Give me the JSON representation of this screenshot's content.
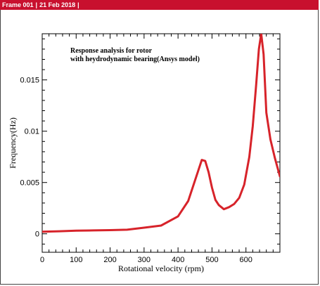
{
  "header": {
    "frame_label": "Frame 001",
    "date_label": "21 Feb 2018"
  },
  "colors": {
    "header_bg": "#c8102e",
    "line": "#d7232a"
  },
  "chart_data": {
    "type": "line",
    "title": "",
    "annotation_lines": [
      "Response analysis for rotor",
      "with heydrodynamic bearing(Ansys model)"
    ],
    "xlabel": "Rotational velocity (rpm)",
    "ylabel": "Frequency(Hz)",
    "xlim": [
      0,
      700
    ],
    "ylim": [
      -0.0018,
      0.0195
    ],
    "xticks": [
      0,
      100,
      200,
      300,
      400,
      500,
      600
    ],
    "xtick_labels": [
      "0",
      "100",
      "200",
      "300",
      "400",
      "500",
      "600"
    ],
    "yticks": [
      0,
      0.005,
      0.01,
      0.015
    ],
    "ytick_labels": [
      "0",
      "0.005",
      "0.01",
      "0.015"
    ],
    "grid": false,
    "series": [
      {
        "x": [
          0,
          50,
          100,
          150,
          200,
          250,
          300,
          350,
          400,
          430,
          460,
          470,
          480,
          490,
          500,
          510,
          520,
          535,
          550,
          565,
          580,
          595,
          610,
          620,
          630,
          638,
          645,
          652,
          660,
          672,
          685,
          700
        ],
        "y": [
          0.0002,
          0.00025,
          0.0003,
          0.00033,
          0.00036,
          0.0004,
          0.0006,
          0.0008,
          0.0017,
          0.0032,
          0.0062,
          0.0072,
          0.0071,
          0.006,
          0.0045,
          0.0033,
          0.0028,
          0.0024,
          0.0026,
          0.0029,
          0.0035,
          0.0048,
          0.0075,
          0.0105,
          0.0145,
          0.018,
          0.0195,
          0.0175,
          0.0118,
          0.0092,
          0.0074,
          0.0056
        ]
      }
    ]
  }
}
